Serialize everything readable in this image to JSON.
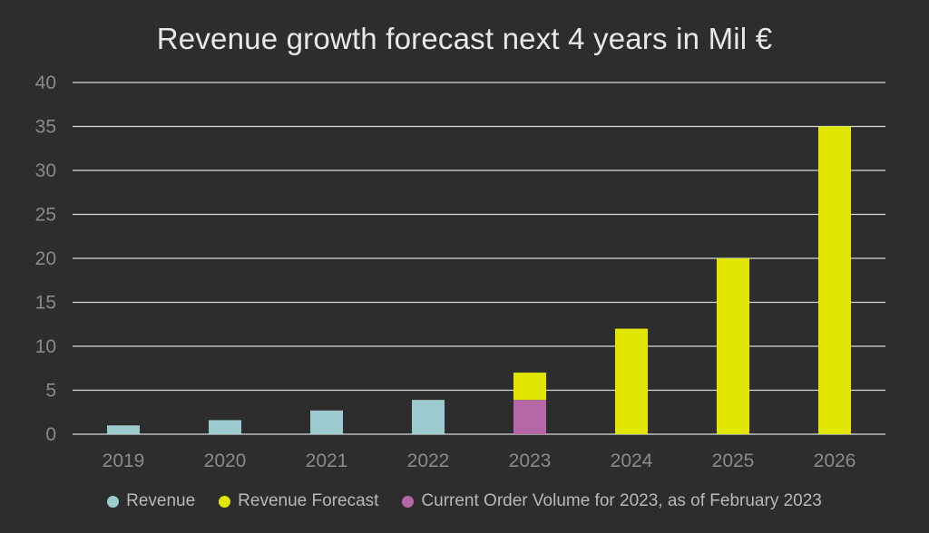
{
  "chart_data": {
    "type": "bar",
    "title": "Revenue growth forecast next 4 years in Mil €",
    "categories": [
      "2019",
      "2020",
      "2021",
      "2022",
      "2023",
      "2024",
      "2025",
      "2026"
    ],
    "stacked": true,
    "ylim": [
      0,
      40
    ],
    "yticks": [
      0,
      5,
      10,
      15,
      20,
      25,
      30,
      35,
      40
    ],
    "grid": true,
    "legend_position": "bottom",
    "series": [
      {
        "name": "Revenue",
        "color": "#9ecbcf",
        "values": [
          1.0,
          1.6,
          2.7,
          3.9,
          null,
          null,
          null,
          null
        ]
      },
      {
        "name": "Current Order Volume for 2023, as of February 2023",
        "color": "#b667a6",
        "values": [
          null,
          null,
          null,
          null,
          3.9,
          null,
          null,
          null
        ]
      },
      {
        "name": "Revenue Forecast",
        "color": "#e1e600",
        "values": [
          null,
          null,
          null,
          null,
          3.1,
          12,
          20,
          35
        ]
      }
    ],
    "legend_order": [
      "Revenue",
      "Revenue Forecast",
      "Current Order Volume for 2023, as of February 2023"
    ]
  }
}
